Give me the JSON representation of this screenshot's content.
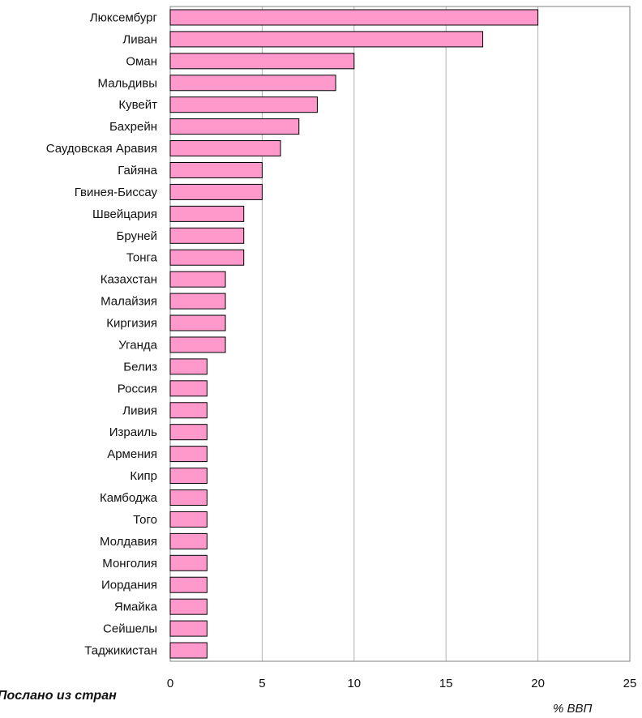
{
  "chart_data": {
    "type": "bar",
    "orientation": "horizontal",
    "categories": [
      "Люксембург",
      "Ливан",
      "Оман",
      "Мальдивы",
      "Кувейт",
      "Бахрейн",
      "Саудовская Аравия",
      "Гайяна",
      "Гвинея-Биссау",
      "Швейцария",
      "Бруней",
      "Тонга",
      "Казахстан",
      "Малайзия",
      "Киргизия",
      "Уганда",
      "Белиз",
      "Россия",
      "Ливия",
      "Израиль",
      "Армения",
      "Кипр",
      "Камбоджа",
      "Того",
      "Молдавия",
      "Монголия",
      "Иордания",
      "Ямайка",
      "Сейшелы",
      "Таджикистан"
    ],
    "values": [
      20,
      17,
      10,
      9,
      8,
      7,
      6,
      5,
      5,
      4,
      4,
      4,
      3,
      3,
      3,
      3,
      2,
      2,
      2,
      2,
      2,
      2,
      2,
      2,
      2,
      2,
      2,
      2,
      2,
      2
    ],
    "xlim": [
      0,
      25
    ],
    "xticks": [
      "0",
      "5",
      "10",
      "15",
      "20",
      "25"
    ],
    "xlabel": "% ВВП",
    "bottom_left_text": "Послано из стран",
    "grid": "vertical",
    "bar_color": "#ff99cc",
    "bar_edge_color": "#000000",
    "grid_color": "#b0b0b0"
  }
}
